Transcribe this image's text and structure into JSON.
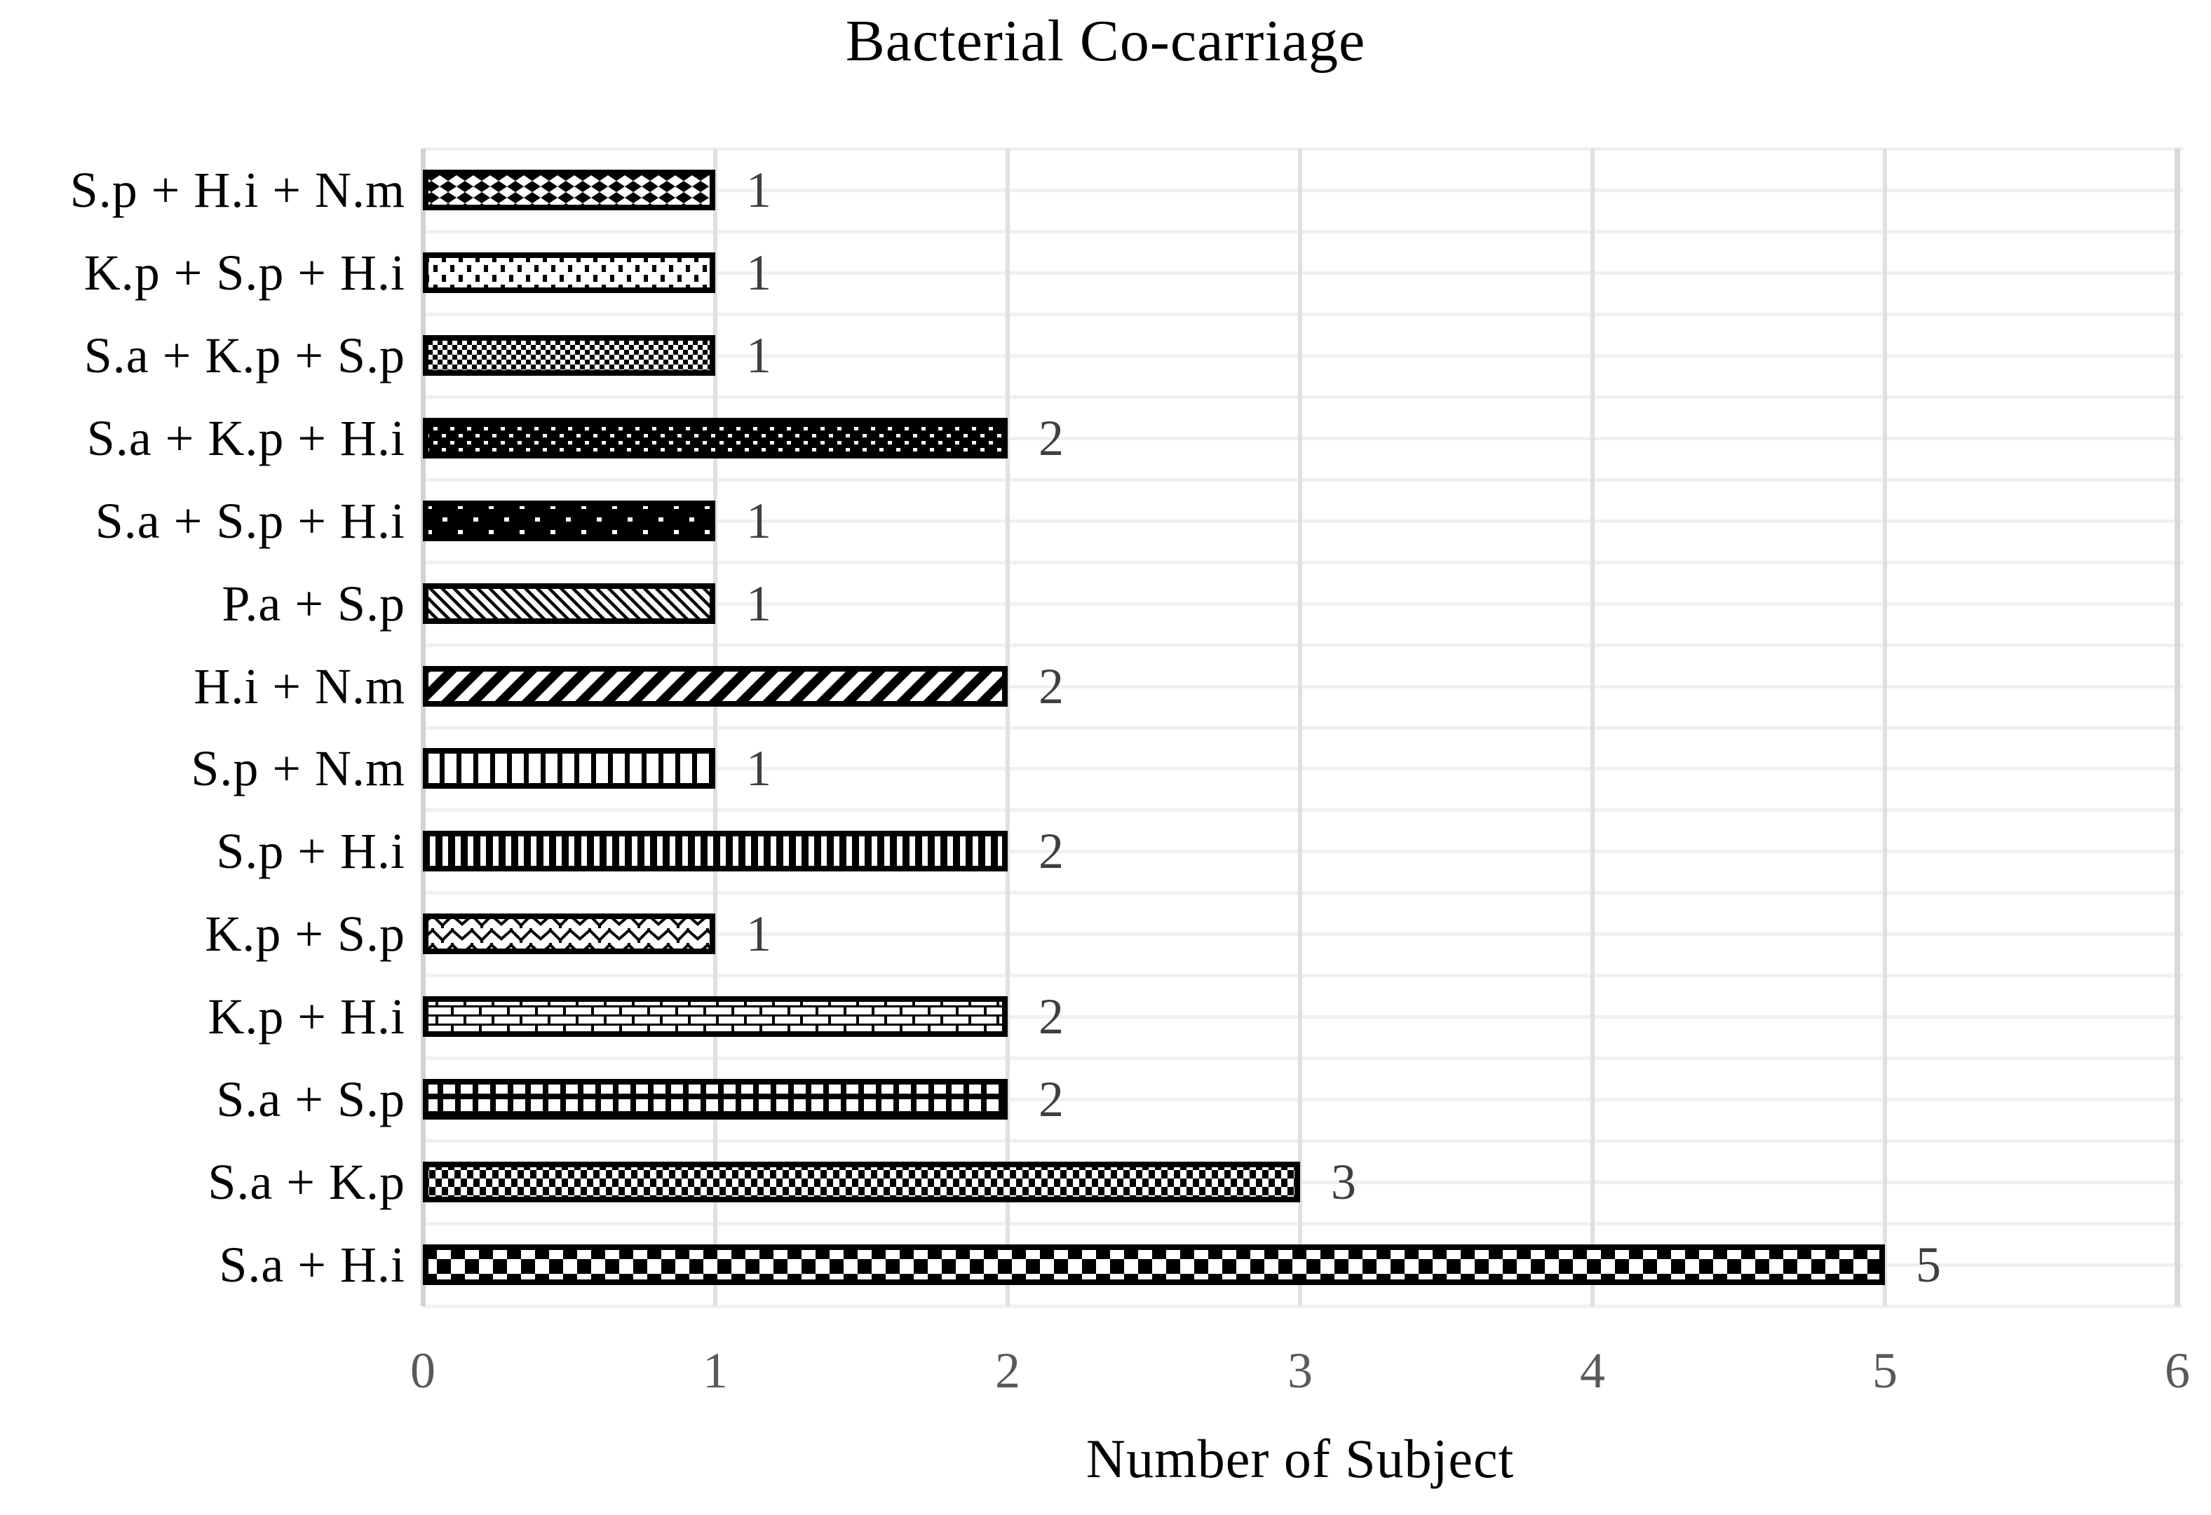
{
  "chart_data": {
    "type": "bar",
    "orientation": "horizontal",
    "title": "Bacterial Co-carriage",
    "xlabel": "Number of Subject",
    "ylabel": "",
    "xlim": [
      0,
      6
    ],
    "xticks": [
      "0",
      "1",
      "2",
      "3",
      "4",
      "5",
      "6"
    ],
    "grid": true,
    "legend_position": "none",
    "categories": [
      "S.p + H.i + N.m",
      "K.p + S.p + H.i",
      "S.a + K.p + S.p",
      "S.a + K.p + H.i",
      "S.a + S.p + H.i",
      "P.a + S.p",
      "H.i + N.m",
      "S.p + N.m",
      "S.p + H.i",
      "K.p + S.p",
      "K.p + H.i",
      "S.a + S.p",
      "S.a + K.p",
      "S.a + H.i"
    ],
    "values": [
      1,
      1,
      1,
      2,
      1,
      1,
      2,
      1,
      2,
      1,
      2,
      2,
      3,
      5
    ],
    "data_labels": [
      "1",
      "1",
      "1",
      "2",
      "1",
      "1",
      "2",
      "1",
      "2",
      "1",
      "2",
      "2",
      "3",
      "5"
    ],
    "bar_patterns": [
      "diamond-checker",
      "dash-dots",
      "checker-small",
      "dots-dense-on-black",
      "dots-sparse-on-black",
      "diagonal-thin-up",
      "diagonal-wide-down",
      "vlines-thin",
      "vlines-thick",
      "wave-zigzag",
      "brick",
      "grid-on-black",
      "checker-medium",
      "checker-large"
    ],
    "colors": {
      "pattern_foreground": "#000000",
      "pattern_background": "#ffffff",
      "bar_border": "#000000",
      "data_label": "#3f3f3f",
      "tick_label": "#595959",
      "gridline_horizontal": "#f0f0f0",
      "gridline_vertical": "#e0e0e0",
      "axis_line": "#d2d2d2",
      "title": "#000000"
    }
  }
}
